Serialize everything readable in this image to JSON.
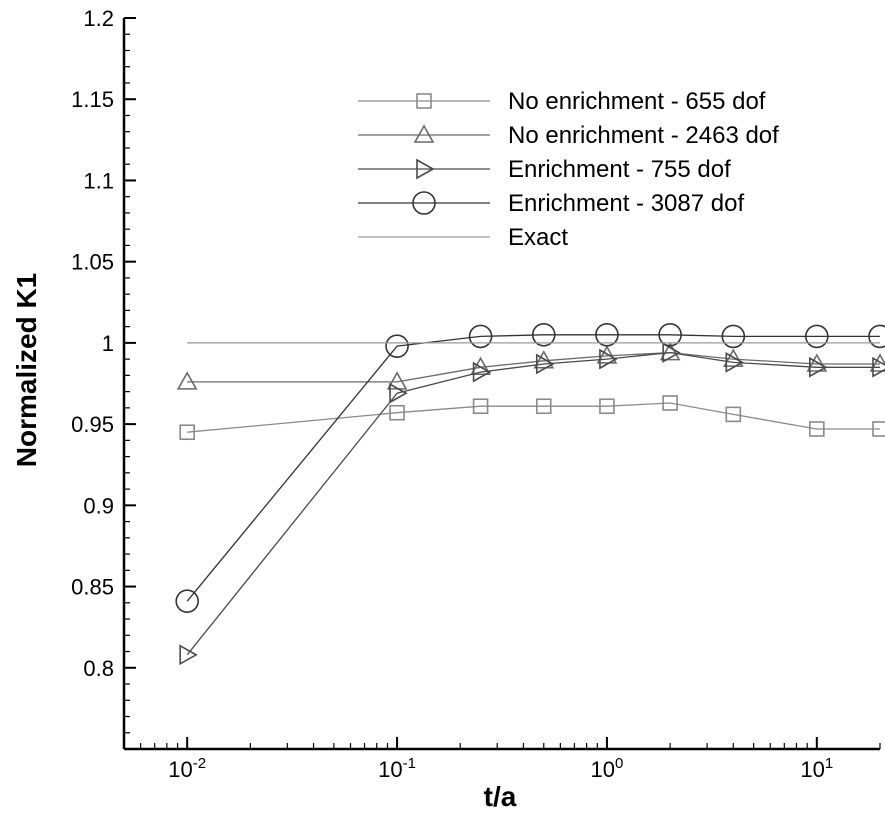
{
  "chart_data": {
    "type": "line",
    "xlabel": "t/a",
    "ylabel": "Normalized K1",
    "xscale": "log",
    "xlim": [
      0.005,
      20
    ],
    "ylim": [
      0.75,
      1.2
    ],
    "grid": false,
    "legend_position": "top-right",
    "x_ticks": [
      {
        "value": 0.01,
        "base": "10",
        "exp": "-2"
      },
      {
        "value": 0.1,
        "base": "10",
        "exp": "-1"
      },
      {
        "value": 1,
        "base": "10",
        "exp": "0"
      },
      {
        "value": 10,
        "base": "10",
        "exp": "1"
      }
    ],
    "y_ticks": [
      "0.8",
      "0.85",
      "0.9",
      "0.95",
      "1",
      "1.05",
      "1.1",
      "1.15",
      "1.2"
    ],
    "series": [
      {
        "name": "No enrichment - 655 dof",
        "marker": "square",
        "color": "#8a8a8a",
        "x": [
          0.01,
          0.1,
          0.25,
          0.5,
          1,
          2,
          4,
          10,
          20
        ],
        "y": [
          0.945,
          0.957,
          0.961,
          0.961,
          0.961,
          0.963,
          0.956,
          0.947,
          0.947
        ]
      },
      {
        "name": "No enrichment - 2463 dof",
        "marker": "triangle-up",
        "color": "#6a6a6a",
        "x": [
          0.01,
          0.1,
          0.25,
          0.5,
          1,
          2,
          4,
          10,
          20
        ],
        "y": [
          0.976,
          0.976,
          0.985,
          0.989,
          0.992,
          0.994,
          0.99,
          0.987,
          0.987
        ]
      },
      {
        "name": "Enrichment - 755 dof",
        "marker": "triangle-right",
        "color": "#4a4a4a",
        "x": [
          0.01,
          0.1,
          0.25,
          0.5,
          1,
          2,
          4,
          10,
          20
        ],
        "y": [
          0.808,
          0.969,
          0.982,
          0.987,
          0.99,
          0.994,
          0.988,
          0.985,
          0.985
        ]
      },
      {
        "name": "Enrichment - 3087 dof",
        "marker": "circle",
        "color": "#333333",
        "x": [
          0.01,
          0.1,
          0.25,
          0.5,
          1,
          2,
          4,
          10,
          20
        ],
        "y": [
          0.841,
          0.998,
          1.004,
          1.005,
          1.005,
          1.005,
          1.004,
          1.004,
          1.004
        ]
      },
      {
        "name": "Exact",
        "marker": "none",
        "color": "#9a9a9a",
        "x": [
          0.01,
          20
        ],
        "y": [
          1.0,
          1.0
        ]
      }
    ]
  }
}
